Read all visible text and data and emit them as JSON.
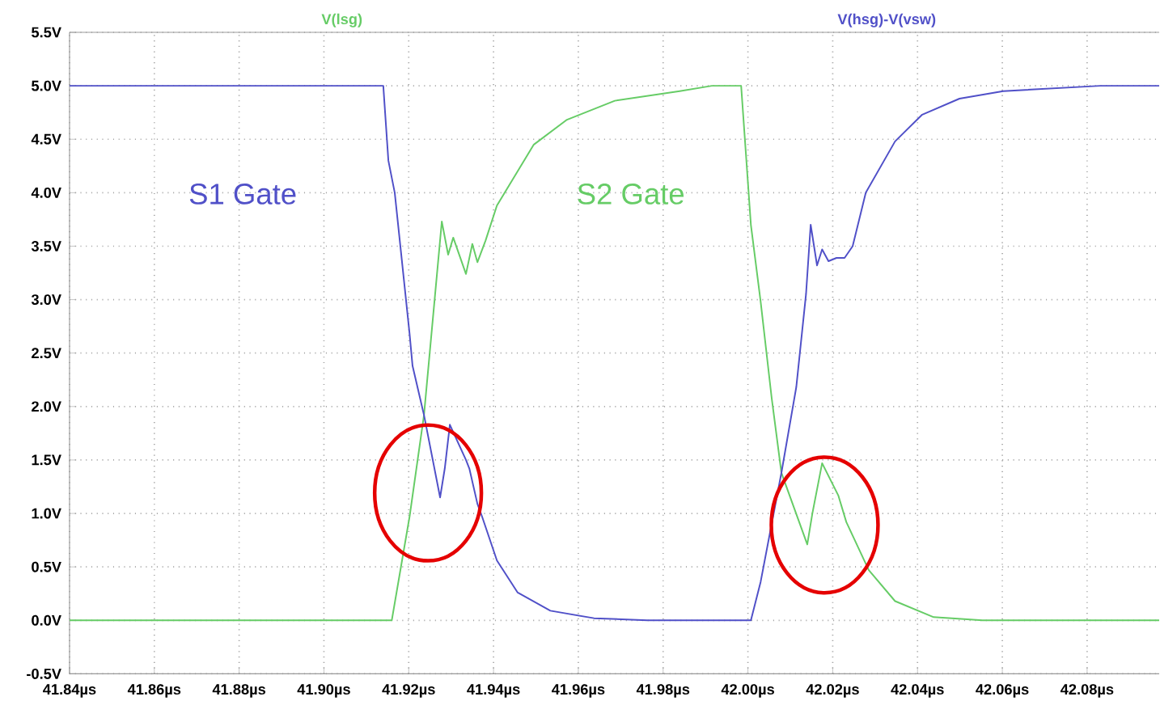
{
  "chart_data": {
    "type": "line",
    "series": [
      {
        "name": "V(lsg)",
        "color": "#66cc66",
        "x": [
          41.84,
          41.916,
          41.9202,
          41.9236,
          41.9278,
          41.9293,
          41.9305,
          41.9335,
          41.935,
          41.9362,
          41.9381,
          41.9408,
          41.9495,
          41.9572,
          41.9686,
          41.9839,
          41.9915,
          41.9973,
          41.9984,
          42.0007,
          42.003,
          42.0056,
          42.0079,
          42.014,
          42.0152,
          42.0175,
          42.0213,
          42.0232,
          42.0285,
          42.0347,
          42.0438,
          42.0553,
          42.097
        ],
        "values": [
          0,
          0,
          0.97,
          1.92,
          3.73,
          3.42,
          3.58,
          3.24,
          3.52,
          3.35,
          3.55,
          3.88,
          4.45,
          4.68,
          4.86,
          4.95,
          5.0,
          5.0,
          5.0,
          3.7,
          2.98,
          2.08,
          1.38,
          0.71,
          1.0,
          1.47,
          1.17,
          0.92,
          0.47,
          0.18,
          0.03,
          0,
          0
        ]
      },
      {
        "name": "V(hsg)-V(vsw)",
        "color": "#5050c8",
        "x": [
          41.84,
          41.914,
          41.9152,
          41.9167,
          41.9202,
          41.9209,
          41.9236,
          41.9274,
          41.9285,
          41.9297,
          41.9335,
          41.9343,
          41.9362,
          41.9373,
          41.9408,
          41.9457,
          41.9534,
          41.9637,
          41.9763,
          41.9999,
          42.0007,
          42.003,
          42.0079,
          42.0114,
          42.0137,
          42.0148,
          42.0163,
          42.0175,
          42.019,
          42.0209,
          42.0228,
          42.0247,
          42.0278,
          42.0347,
          42.0411,
          42.0499,
          42.0602,
          42.0831,
          42.097
        ],
        "values": [
          5.0,
          5.0,
          4.3,
          4.0,
          2.68,
          2.38,
          1.92,
          1.15,
          1.42,
          1.83,
          1.5,
          1.42,
          1.09,
          0.97,
          0.56,
          0.26,
          0.09,
          0.02,
          0,
          0,
          0,
          0.36,
          1.38,
          2.18,
          3.05,
          3.7,
          3.32,
          3.47,
          3.36,
          3.39,
          3.39,
          3.5,
          4.0,
          4.48,
          4.73,
          4.88,
          4.95,
          5.0,
          5.0
        ]
      }
    ],
    "annotations": [
      "S2 Gate",
      "S1 Gate"
    ],
    "xlim": [
      41.84,
      42.097
    ],
    "xticks": [
      {
        "value": 41.84,
        "label": "41.84µs"
      },
      {
        "value": 41.86,
        "label": "41.86µs"
      },
      {
        "value": 41.88,
        "label": "41.88µs"
      },
      {
        "value": 41.9,
        "label": "41.90µs"
      },
      {
        "value": 41.92,
        "label": "41.92µs"
      },
      {
        "value": 41.94,
        "label": "41.94µs"
      },
      {
        "value": 41.96,
        "label": "41.96µs"
      },
      {
        "value": 41.98,
        "label": "41.98µs"
      },
      {
        "value": 42.0,
        "label": "42.00µs"
      },
      {
        "value": 42.02,
        "label": "42.02µs"
      },
      {
        "value": 42.04,
        "label": "42.04µs"
      },
      {
        "value": 42.06,
        "label": "42.06µs"
      },
      {
        "value": 42.08,
        "label": "42.08µs"
      }
    ],
    "ylim": [
      -0.5,
      5.5
    ],
    "yticks": [
      {
        "value": -0.5,
        "label": "-0.5V"
      },
      {
        "value": 0,
        "label": "0.0V"
      },
      {
        "value": 0.5,
        "label": "0.5V"
      },
      {
        "value": 1.0,
        "label": "1.0V"
      },
      {
        "value": 1.5,
        "label": "1.5V"
      },
      {
        "value": 2.0,
        "label": "2.0V"
      },
      {
        "value": 2.5,
        "label": "2.5V"
      },
      {
        "value": 3.0,
        "label": "3.0V"
      },
      {
        "value": 3.5,
        "label": "3.5V"
      },
      {
        "value": 4.0,
        "label": "4.0V"
      },
      {
        "value": 4.5,
        "label": "4.5V"
      },
      {
        "value": 5.0,
        "label": "5.0V"
      },
      {
        "value": 5.5,
        "label": "5.5V"
      }
    ],
    "grid": true,
    "legend": "top",
    "marker": "none",
    "line_style": "solid"
  }
}
